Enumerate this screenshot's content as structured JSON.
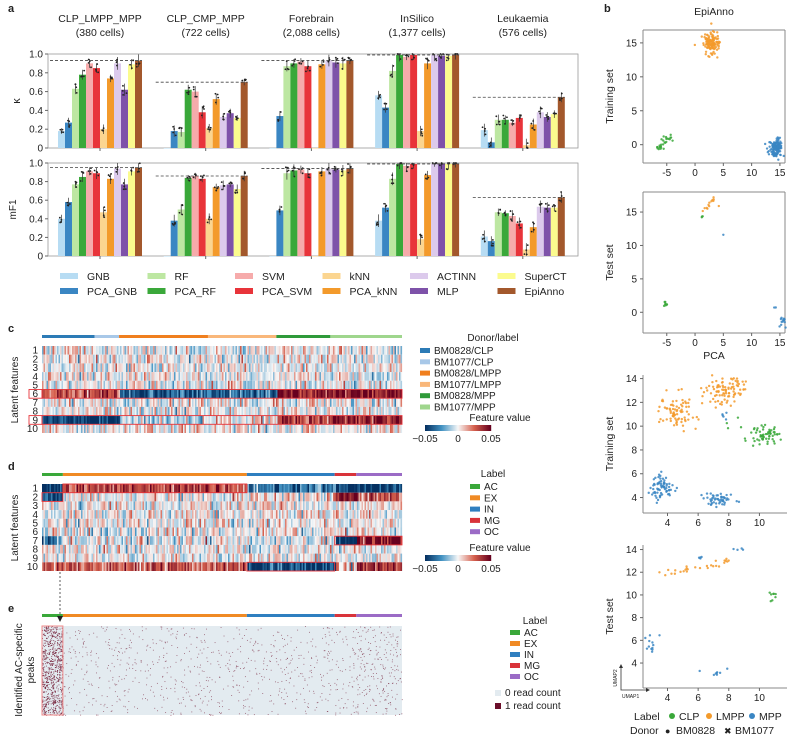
{
  "panel_labels": {
    "a": "a",
    "b": "b",
    "c": "c",
    "d": "d",
    "e": "e"
  },
  "colors": {
    "methods": {
      "GNB": "#b7dcf3",
      "PCA_GNB": "#3a86c3",
      "RF": "#bde7a2",
      "PCA_RF": "#3aa83a",
      "SVM": "#f6abab",
      "PCA_SVM": "#e8343a",
      "kNN": "#fbd590",
      "PCA_kNN": "#f39a2b",
      "ACTINN": "#dccaec",
      "MLP": "#7e52a9",
      "SuperCT": "#fbfb8e",
      "EpiAnno": "#a3582c"
    },
    "cell_types": {
      "CLP": "#3aa83a",
      "LMPP": "#f39a2b",
      "MPP": "#3a86c3"
    },
    "brain_labels": {
      "AC": "#3aa83a",
      "EX": "#f08a24",
      "IN": "#2f7fc0",
      "MG": "#d9333a",
      "OC": "#9b6bc6"
    },
    "donor_labels": {
      "BM0828/CLP": "#2c7bb6",
      "BM1077/CLP": "#a8c8e8",
      "BM0828/LMPP": "#f07f1e",
      "BM1077/LMPP": "#f9b77a",
      "BM0828/MPP": "#2f9a3a",
      "BM1077/MPP": "#9fd68d"
    },
    "colormap": [
      "#053061",
      "#4393c3",
      "#f7f7f7",
      "#d6604d",
      "#67001f"
    ],
    "highlight": "#e8343a"
  },
  "chart_data": [
    {
      "type": "bar",
      "id": "kappa",
      "ylabel": "κ",
      "ylim": [
        0,
        1
      ],
      "yticks": [
        "0",
        "0.2",
        "0.4",
        "0.6",
        "0.8",
        "1.0"
      ],
      "categories": [
        {
          "name": "CLP_LMPP_MPP",
          "cells": "(380 cells)"
        },
        {
          "name": "CLP_CMP_MPP",
          "cells": "(722 cells)"
        },
        {
          "name": "Forebrain",
          "cells": "(2,088 cells)"
        },
        {
          "name": "InSilico",
          "cells": "(1,377 cells)"
        },
        {
          "name": "Leukaemia",
          "cells": "(576 cells)"
        }
      ],
      "series": [
        {
          "name": "GNB",
          "values": [
            0.18,
            0.0,
            0.0,
            0.56,
            0.19
          ]
        },
        {
          "name": "PCA_GNB",
          "values": [
            0.27,
            0.18,
            0.34,
            0.43,
            0.06
          ]
        },
        {
          "name": "RF",
          "values": [
            0.63,
            0.17,
            0.87,
            0.82,
            0.3
          ]
        },
        {
          "name": "PCA_RF",
          "values": [
            0.78,
            0.62,
            0.9,
            0.99,
            0.3
          ]
        },
        {
          "name": "SVM",
          "values": [
            0.9,
            0.6,
            0.92,
            0.97,
            0.27
          ]
        },
        {
          "name": "PCA_SVM",
          "values": [
            0.85,
            0.38,
            0.87,
            0.99,
            0.32
          ]
        },
        {
          "name": "kNN",
          "values": [
            0.2,
            0.21,
            0.0,
            0.18,
            0.03
          ]
        },
        {
          "name": "PCA_kNN",
          "values": [
            0.74,
            0.52,
            0.89,
            0.9,
            0.25
          ]
        },
        {
          "name": "ACTINN",
          "values": [
            0.9,
            0.33,
            0.93,
            0.99,
            0.38
          ]
        },
        {
          "name": "MLP",
          "values": [
            0.62,
            0.37,
            0.91,
            0.98,
            0.33
          ]
        },
        {
          "name": "SuperCT",
          "values": [
            0.89,
            0.32,
            0.9,
            0.98,
            0.36
          ]
        },
        {
          "name": "EpiAnno",
          "values": [
            0.93,
            0.7,
            0.93,
            0.99,
            0.54
          ]
        }
      ],
      "dashed_reference": [
        0.93,
        0.7,
        0.93,
        0.99,
        0.54
      ]
    },
    {
      "type": "bar",
      "id": "mF1",
      "ylabel": "mF1",
      "ylim": [
        0,
        1
      ],
      "yticks": [
        "0",
        "0.2",
        "0.4",
        "0.6",
        "0.8",
        "1.0"
      ],
      "series": [
        {
          "name": "GNB",
          "values": [
            0.4,
            0.0,
            0.0,
            0.38,
            0.21
          ]
        },
        {
          "name": "PCA_GNB",
          "values": [
            0.58,
            0.38,
            0.49,
            0.52,
            0.16
          ]
        },
        {
          "name": "RF",
          "values": [
            0.77,
            0.5,
            0.89,
            0.83,
            0.47
          ]
        },
        {
          "name": "PCA_RF",
          "values": [
            0.85,
            0.84,
            0.92,
            0.99,
            0.46
          ]
        },
        {
          "name": "SVM",
          "values": [
            0.91,
            0.86,
            0.93,
            0.97,
            0.43
          ]
        },
        {
          "name": "PCA_SVM",
          "values": [
            0.89,
            0.83,
            0.89,
            0.99,
            0.35
          ]
        },
        {
          "name": "kNN",
          "values": [
            0.47,
            0.4,
            0.0,
            0.18,
            0.07
          ]
        },
        {
          "name": "PCA_kNN",
          "values": [
            0.83,
            0.74,
            0.91,
            0.87,
            0.31
          ]
        },
        {
          "name": "ACTINN",
          "values": [
            0.94,
            0.76,
            0.94,
            0.99,
            0.53
          ]
        },
        {
          "name": "MLP",
          "values": [
            0.77,
            0.77,
            0.93,
            0.99,
            0.52
          ]
        },
        {
          "name": "SuperCT",
          "values": [
            0.91,
            0.72,
            0.92,
            0.99,
            0.52
          ]
        },
        {
          "name": "EpiAnno",
          "values": [
            0.95,
            0.86,
            0.94,
            0.99,
            0.63
          ]
        }
      ],
      "dashed_reference": [
        0.95,
        0.86,
        0.94,
        0.99,
        0.63
      ]
    },
    {
      "type": "scatter",
      "id": "epianno-train",
      "title": "EpiAnno",
      "ylabel": "Training set",
      "xlim": [
        -9.2,
        15.9
      ],
      "ylim": [
        -2.7,
        16.9
      ],
      "xticks": [
        -5,
        0,
        5,
        10,
        15
      ],
      "yticks": [
        0,
        5,
        10,
        15
      ],
      "clusters": [
        {
          "label": "CLP",
          "from": [
            -6.6,
            -0.8
          ],
          "to": [
            -4.0,
            1.3
          ],
          "n": 28,
          "sd": [
            0.3,
            0.3
          ]
        },
        {
          "label": "LMPP",
          "center": [
            2.8,
            15.0
          ],
          "n": 130,
          "sd": [
            0.7,
            0.9
          ]
        },
        {
          "label": "MPP",
          "center": [
            14.3,
            -0.5
          ],
          "n": 130,
          "sd": [
            0.6,
            0.7
          ]
        }
      ]
    },
    {
      "type": "scatter",
      "id": "epianno-test",
      "ylabel": "Test set",
      "xlabel": "PCA",
      "xlim": [
        -9.2,
        15.9
      ],
      "ylim": [
        -3.1,
        18.0
      ],
      "xticks": [
        -5,
        0,
        5,
        10,
        15
      ],
      "yticks": [
        0,
        5,
        10,
        15
      ],
      "clusters": [
        {
          "label": "CLP",
          "center": [
            -5.2,
            1.2
          ],
          "n": 8,
          "sd": [
            0.2,
            0.15
          ]
        },
        {
          "label": "CLP",
          "center": [
            1.3,
            14.4
          ],
          "n": 3,
          "sd": [
            0.1,
            0.2
          ]
        },
        {
          "label": "LMPP",
          "from": [
            1.3,
            15.0
          ],
          "to": [
            3.5,
            17.2
          ],
          "n": 12,
          "sd": [
            0.15,
            0.15
          ]
        },
        {
          "label": "LMPP",
          "center": [
            4.2,
            15.9
          ],
          "n": 1,
          "sd": [
            0,
            0
          ]
        },
        {
          "label": "MPP",
          "center": [
            5.0,
            11.6
          ],
          "n": 1,
          "sd": [
            0,
            0
          ]
        },
        {
          "label": "MPP",
          "center": [
            15.4,
            -1.3
          ],
          "n": 14,
          "sd": [
            0.3,
            0.4
          ]
        },
        {
          "label": "MPP",
          "center": [
            14.3,
            0.9
          ],
          "n": 2,
          "sd": [
            0.3,
            0.4
          ]
        }
      ]
    },
    {
      "type": "scatter",
      "id": "pca-train",
      "ylabel": "Training set",
      "xlim": [
        2.4,
        11.8
      ],
      "ylim": [
        2.7,
        14.3
      ],
      "xticks": [
        4,
        6,
        8,
        10
      ],
      "yticks": [
        4,
        6,
        8,
        10,
        12,
        14
      ],
      "clusters": [
        {
          "label": "LMPP",
          "center": [
            4.7,
            11.2
          ],
          "n": 80,
          "sd": [
            0.55,
            0.7
          ]
        },
        {
          "label": "LMPP",
          "center": [
            7.8,
            12.9
          ],
          "n": 90,
          "sd": [
            0.75,
            0.55
          ]
        },
        {
          "label": "CLP",
          "center": [
            10.4,
            9.2
          ],
          "n": 60,
          "sd": [
            0.5,
            0.4
          ]
        },
        {
          "label": "CLP",
          "center": [
            8.2,
            10.5
          ],
          "n": 4,
          "sd": [
            0.4,
            0.3
          ]
        },
        {
          "label": "MPP",
          "center": [
            3.6,
            4.9
          ],
          "n": 70,
          "sd": [
            0.35,
            0.6
          ]
        },
        {
          "label": "MPP",
          "center": [
            7.3,
            3.8
          ],
          "n": 50,
          "sd": [
            0.5,
            0.3
          ]
        },
        {
          "label": "MPP",
          "center": [
            7.8,
            10.8
          ],
          "n": 5,
          "sd": [
            0.3,
            0.3
          ]
        }
      ]
    },
    {
      "type": "scatter",
      "id": "pca-test",
      "ylabel": "Test set",
      "xlabel": "UMAP1",
      "ylabel2": "UMAP2",
      "xlim": [
        2.4,
        11.8
      ],
      "ylim": [
        1.8,
        14.4
      ],
      "xticks": [
        4,
        6,
        8,
        10
      ],
      "yticks": [
        4,
        6,
        8,
        10,
        12,
        14
      ],
      "clusters": [
        {
          "label": "LMPP",
          "from": [
            3.8,
            11.8
          ],
          "to": [
            8.0,
            13.1
          ],
          "n": 28,
          "sd": [
            0.15,
            0.15
          ]
        },
        {
          "label": "MPP",
          "center": [
            6.1,
            13.2
          ],
          "n": 4,
          "sd": [
            0.08,
            0.1
          ]
        },
        {
          "label": "MPP",
          "center": [
            8.6,
            14.0
          ],
          "n": 4,
          "sd": [
            0.2,
            0.1
          ]
        },
        {
          "label": "CLP",
          "center": [
            10.8,
            9.8
          ],
          "n": 8,
          "sd": [
            0.15,
            0.3
          ]
        },
        {
          "label": "MPP",
          "center": [
            3.0,
            5.8
          ],
          "n": 12,
          "sd": [
            0.2,
            0.5
          ]
        },
        {
          "label": "MPP",
          "center": [
            7.2,
            3.1
          ],
          "n": 6,
          "sd": [
            0.15,
            0.05
          ]
        },
        {
          "label": "MPP",
          "center": [
            6.1,
            3.3
          ],
          "n": 1,
          "sd": [
            0,
            0
          ]
        },
        {
          "label": "MPP",
          "center": [
            7.9,
            3.5
          ],
          "n": 1,
          "sd": [
            0,
            0
          ]
        }
      ]
    },
    {
      "type": "heatmap",
      "id": "latent-donor",
      "ylabel": "Latent features",
      "rows": [
        "1",
        "2",
        "3",
        "4",
        "5",
        "6",
        "7",
        "8",
        "9",
        "10"
      ],
      "segments": [
        {
          "label": "BM0828/CLP",
          "share": 0.146
        },
        {
          "label": "BM1077/CLP",
          "share": 0.068
        },
        {
          "label": "BM0828/LMPP",
          "share": 0.247
        },
        {
          "label": "BM1077/LMPP",
          "share": 0.19
        },
        {
          "label": "BM0828/MPP",
          "share": 0.15
        },
        {
          "label": "BM1077/MPP",
          "share": 0.199
        }
      ],
      "row_means": {
        "6": [
          0.03,
          0.03,
          -0.04,
          -0.035,
          0.045,
          0.045
        ],
        "9": [
          -0.05,
          -0.05,
          -0.01,
          0.0,
          0.03,
          0.045
        ]
      },
      "highlighted_rows": [
        "6",
        "9"
      ],
      "legend_title": "Donor/label",
      "colorbar_title": "Feature value",
      "colorbar_ticks": [
        "−0.05",
        "0",
        "0.05"
      ]
    },
    {
      "type": "heatmap",
      "id": "latent-brain",
      "ylabel": "Latent features",
      "rows": [
        "1",
        "2",
        "3",
        "4",
        "5",
        "6",
        "7",
        "8",
        "9",
        "10"
      ],
      "segments": [
        {
          "label": "AC",
          "share": 0.058
        },
        {
          "label": "EX",
          "share": 0.511
        },
        {
          "label": "IN",
          "share": 0.244
        },
        {
          "label": "MG",
          "share": 0.06
        },
        {
          "label": "OC",
          "share": 0.127
        }
      ],
      "row_means": {
        "1": [
          -0.05,
          0.03,
          -0.03,
          -0.05,
          -0.05
        ],
        "2": [
          -0.05,
          0.0,
          0.005,
          0.04,
          0.025
        ],
        "7": [
          -0.03,
          0.0,
          -0.005,
          -0.05,
          0.05
        ],
        "10": [
          0.03,
          0.025,
          -0.045,
          0.01,
          0.035
        ]
      },
      "legend_title": "Label",
      "colorbar_title": "Feature value",
      "colorbar_ticks": [
        "−0.05",
        "0",
        "0.05"
      ]
    },
    {
      "type": "heatmap",
      "id": "ac-peaks",
      "ylabel": "Identified AC-specific peaks",
      "segments": [
        {
          "label": "AC",
          "share": 0.058
        },
        {
          "label": "EX",
          "share": 0.511
        },
        {
          "label": "IN",
          "share": 0.244
        },
        {
          "label": "MG",
          "share": 0.06
        },
        {
          "label": "OC",
          "share": 0.127
        }
      ],
      "legend_title": "Label",
      "value_legend": [
        {
          "label": "0 read count",
          "color": "#e3ebf0"
        },
        {
          "label": "1 read count",
          "color": "#6b0f2a"
        }
      ]
    }
  ],
  "scatter_legend": {
    "label_title": "Label",
    "labels": [
      "CLP",
      "LMPP",
      "MPP"
    ],
    "donor_title": "Donor",
    "donors": [
      {
        "symbol": "●",
        "name": "BM0828"
      },
      {
        "symbol": "✖",
        "name": "BM1077"
      }
    ]
  }
}
